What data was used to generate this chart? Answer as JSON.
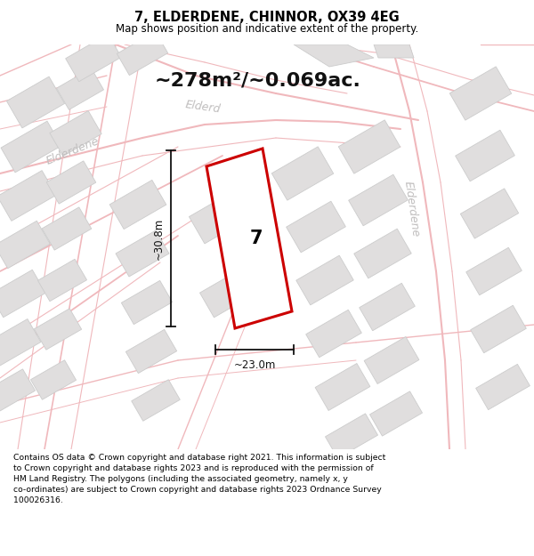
{
  "title_line1": "7, ELDERDENE, CHINNOR, OX39 4EG",
  "title_line2": "Map shows position and indicative extent of the property.",
  "area_text": "~278m²/~0.069ac.",
  "dim_vertical": "~30.8m",
  "dim_horizontal": "~23.0m",
  "property_number": "7",
  "footer_lines": [
    "Contains OS data © Crown copyright and database right 2021. This information is subject",
    "to Crown copyright and database rights 2023 and is reproduced with the permission of",
    "HM Land Registry. The polygons (including the associated geometry, namely x, y",
    "co-ordinates) are subject to Crown copyright and database rights 2023 Ordnance Survey",
    "100026316."
  ],
  "map_bg": "#f7f6f6",
  "road_color": "#f0b8bc",
  "road_edge_color": "#e8a0a5",
  "building_fill": "#e0dede",
  "building_edge": "#cccccc",
  "property_color": "#cc0000",
  "title_bg": "#ffffff",
  "footer_bg": "#ffffff",
  "label_color": "#c0bebe",
  "dim_color": "#111111",
  "area_color": "#111111"
}
